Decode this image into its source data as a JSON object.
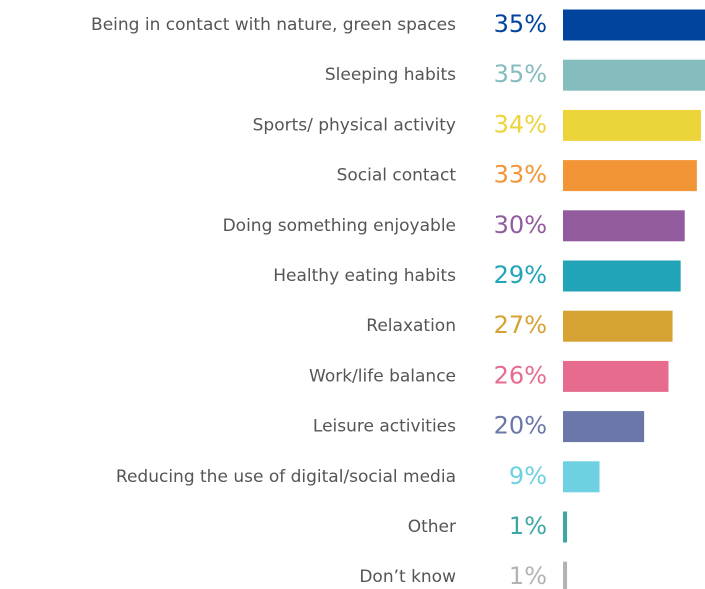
{
  "chart_data": {
    "type": "bar",
    "orientation": "horizontal",
    "categories": [
      "Being in contact with nature, green spaces",
      "Sleeping habits",
      "Sports/ physical activity",
      "Social contact",
      "Doing something enjoyable",
      "Healthy eating habits",
      "Relaxation",
      "Work/life balance",
      "Leisure activities",
      "Reducing the use of digital/social media",
      "Other",
      "Don’t know"
    ],
    "values": [
      35,
      35,
      34,
      33,
      30,
      29,
      27,
      26,
      20,
      9,
      1,
      1
    ],
    "value_labels": [
      "35%",
      "35%",
      "34%",
      "33%",
      "30%",
      "29%",
      "27%",
      "26%",
      "20%",
      "9%",
      "1%",
      "1%"
    ],
    "colors": [
      "#00449e",
      "#85bcbd",
      "#ecd43b",
      "#f29536",
      "#925b9e",
      "#22a4b8",
      "#d6a234",
      "#e66b8f",
      "#6a77a8",
      "#6dd1e1",
      "#3ea7a2",
      "#b3b3b3"
    ]
  }
}
